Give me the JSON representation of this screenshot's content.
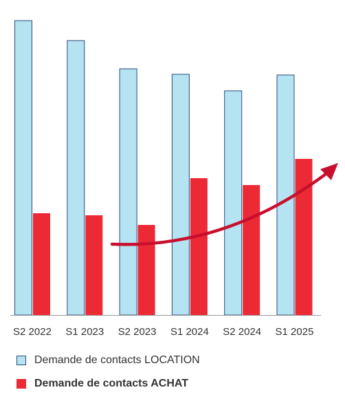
{
  "chart_data": {
    "type": "bar",
    "categories": [
      "S2 2022",
      "S1 2023",
      "S2 2023",
      "S1 2024",
      "S2 2024",
      "S1 2025"
    ],
    "series": [
      {
        "name": "Demande de contacts LOCATION",
        "values": [
          428,
          399,
          358,
          350,
          326,
          349
        ],
        "color": "#b5e3f2",
        "border": "#2a4a7a"
      },
      {
        "name": "Demande de contacts ACHAT",
        "values": [
          148,
          145,
          131,
          199,
          189,
          227
        ],
        "color": "#ec2a35"
      }
    ],
    "ylim": [
      0,
      440
    ],
    "grid": false,
    "legend_position": "bottom",
    "annotation": {
      "type": "trend-arrow",
      "color": "#c8102e",
      "icon": "trend-up-arrow-icon"
    }
  }
}
